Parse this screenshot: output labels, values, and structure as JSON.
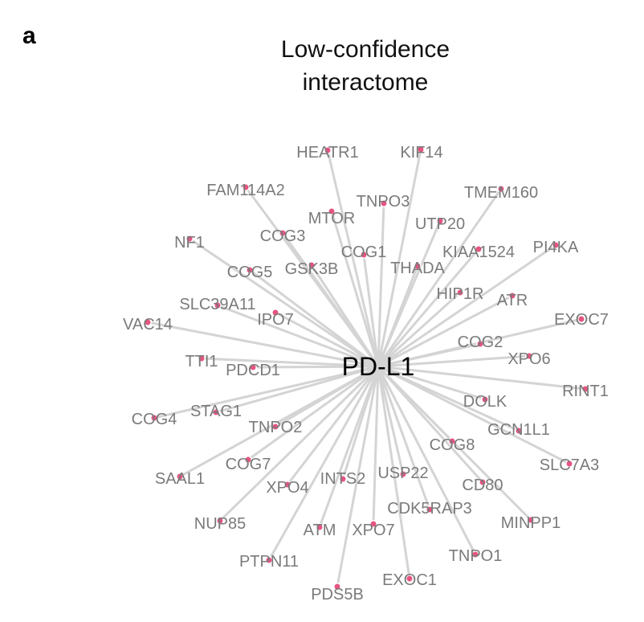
{
  "panel_letter": "a",
  "title_lines": [
    "Low-confidence",
    "interactome"
  ],
  "hub": {
    "label": "PD-L1"
  },
  "node_color": "#e75480",
  "edge_color": "#d4d4d4",
  "nodes": [
    {
      "label": "HEATR1"
    },
    {
      "label": "KIF14"
    },
    {
      "label": "FAM114A2"
    },
    {
      "label": "TNPO3"
    },
    {
      "label": "TMEM160"
    },
    {
      "label": "MTOR"
    },
    {
      "label": "UTP20"
    },
    {
      "label": "COG3"
    },
    {
      "label": "NF1"
    },
    {
      "label": "COG1"
    },
    {
      "label": "KIAA1524"
    },
    {
      "label": "PI4KA"
    },
    {
      "label": "COG5"
    },
    {
      "label": "GSK3B"
    },
    {
      "label": "THADA"
    },
    {
      "label": "HIP1R"
    },
    {
      "label": "SLC39A11"
    },
    {
      "label": "ATR"
    },
    {
      "label": "IPO7"
    },
    {
      "label": "EXOC7"
    },
    {
      "label": "VAC14"
    },
    {
      "label": "COG2"
    },
    {
      "label": "XPO6"
    },
    {
      "label": "TTI1"
    },
    {
      "label": "PDCD1"
    },
    {
      "label": "RINT1"
    },
    {
      "label": "DOLK"
    },
    {
      "label": "STAG1"
    },
    {
      "label": "COG4"
    },
    {
      "label": "TNPO2"
    },
    {
      "label": "GCN1L1"
    },
    {
      "label": "COG8"
    },
    {
      "label": "COG7"
    },
    {
      "label": "SLC7A3"
    },
    {
      "label": "SAAL1"
    },
    {
      "label": "INTS2"
    },
    {
      "label": "USP22"
    },
    {
      "label": "XPO4"
    },
    {
      "label": "CD80"
    },
    {
      "label": "CDK5RAP3"
    },
    {
      "label": "NUP85"
    },
    {
      "label": "MINPP1"
    },
    {
      "label": "ATM"
    },
    {
      "label": "XPO7"
    },
    {
      "label": "TNPO1"
    },
    {
      "label": "PTPN11"
    },
    {
      "label": "EXOC1"
    },
    {
      "label": "PDS5B"
    }
  ]
}
